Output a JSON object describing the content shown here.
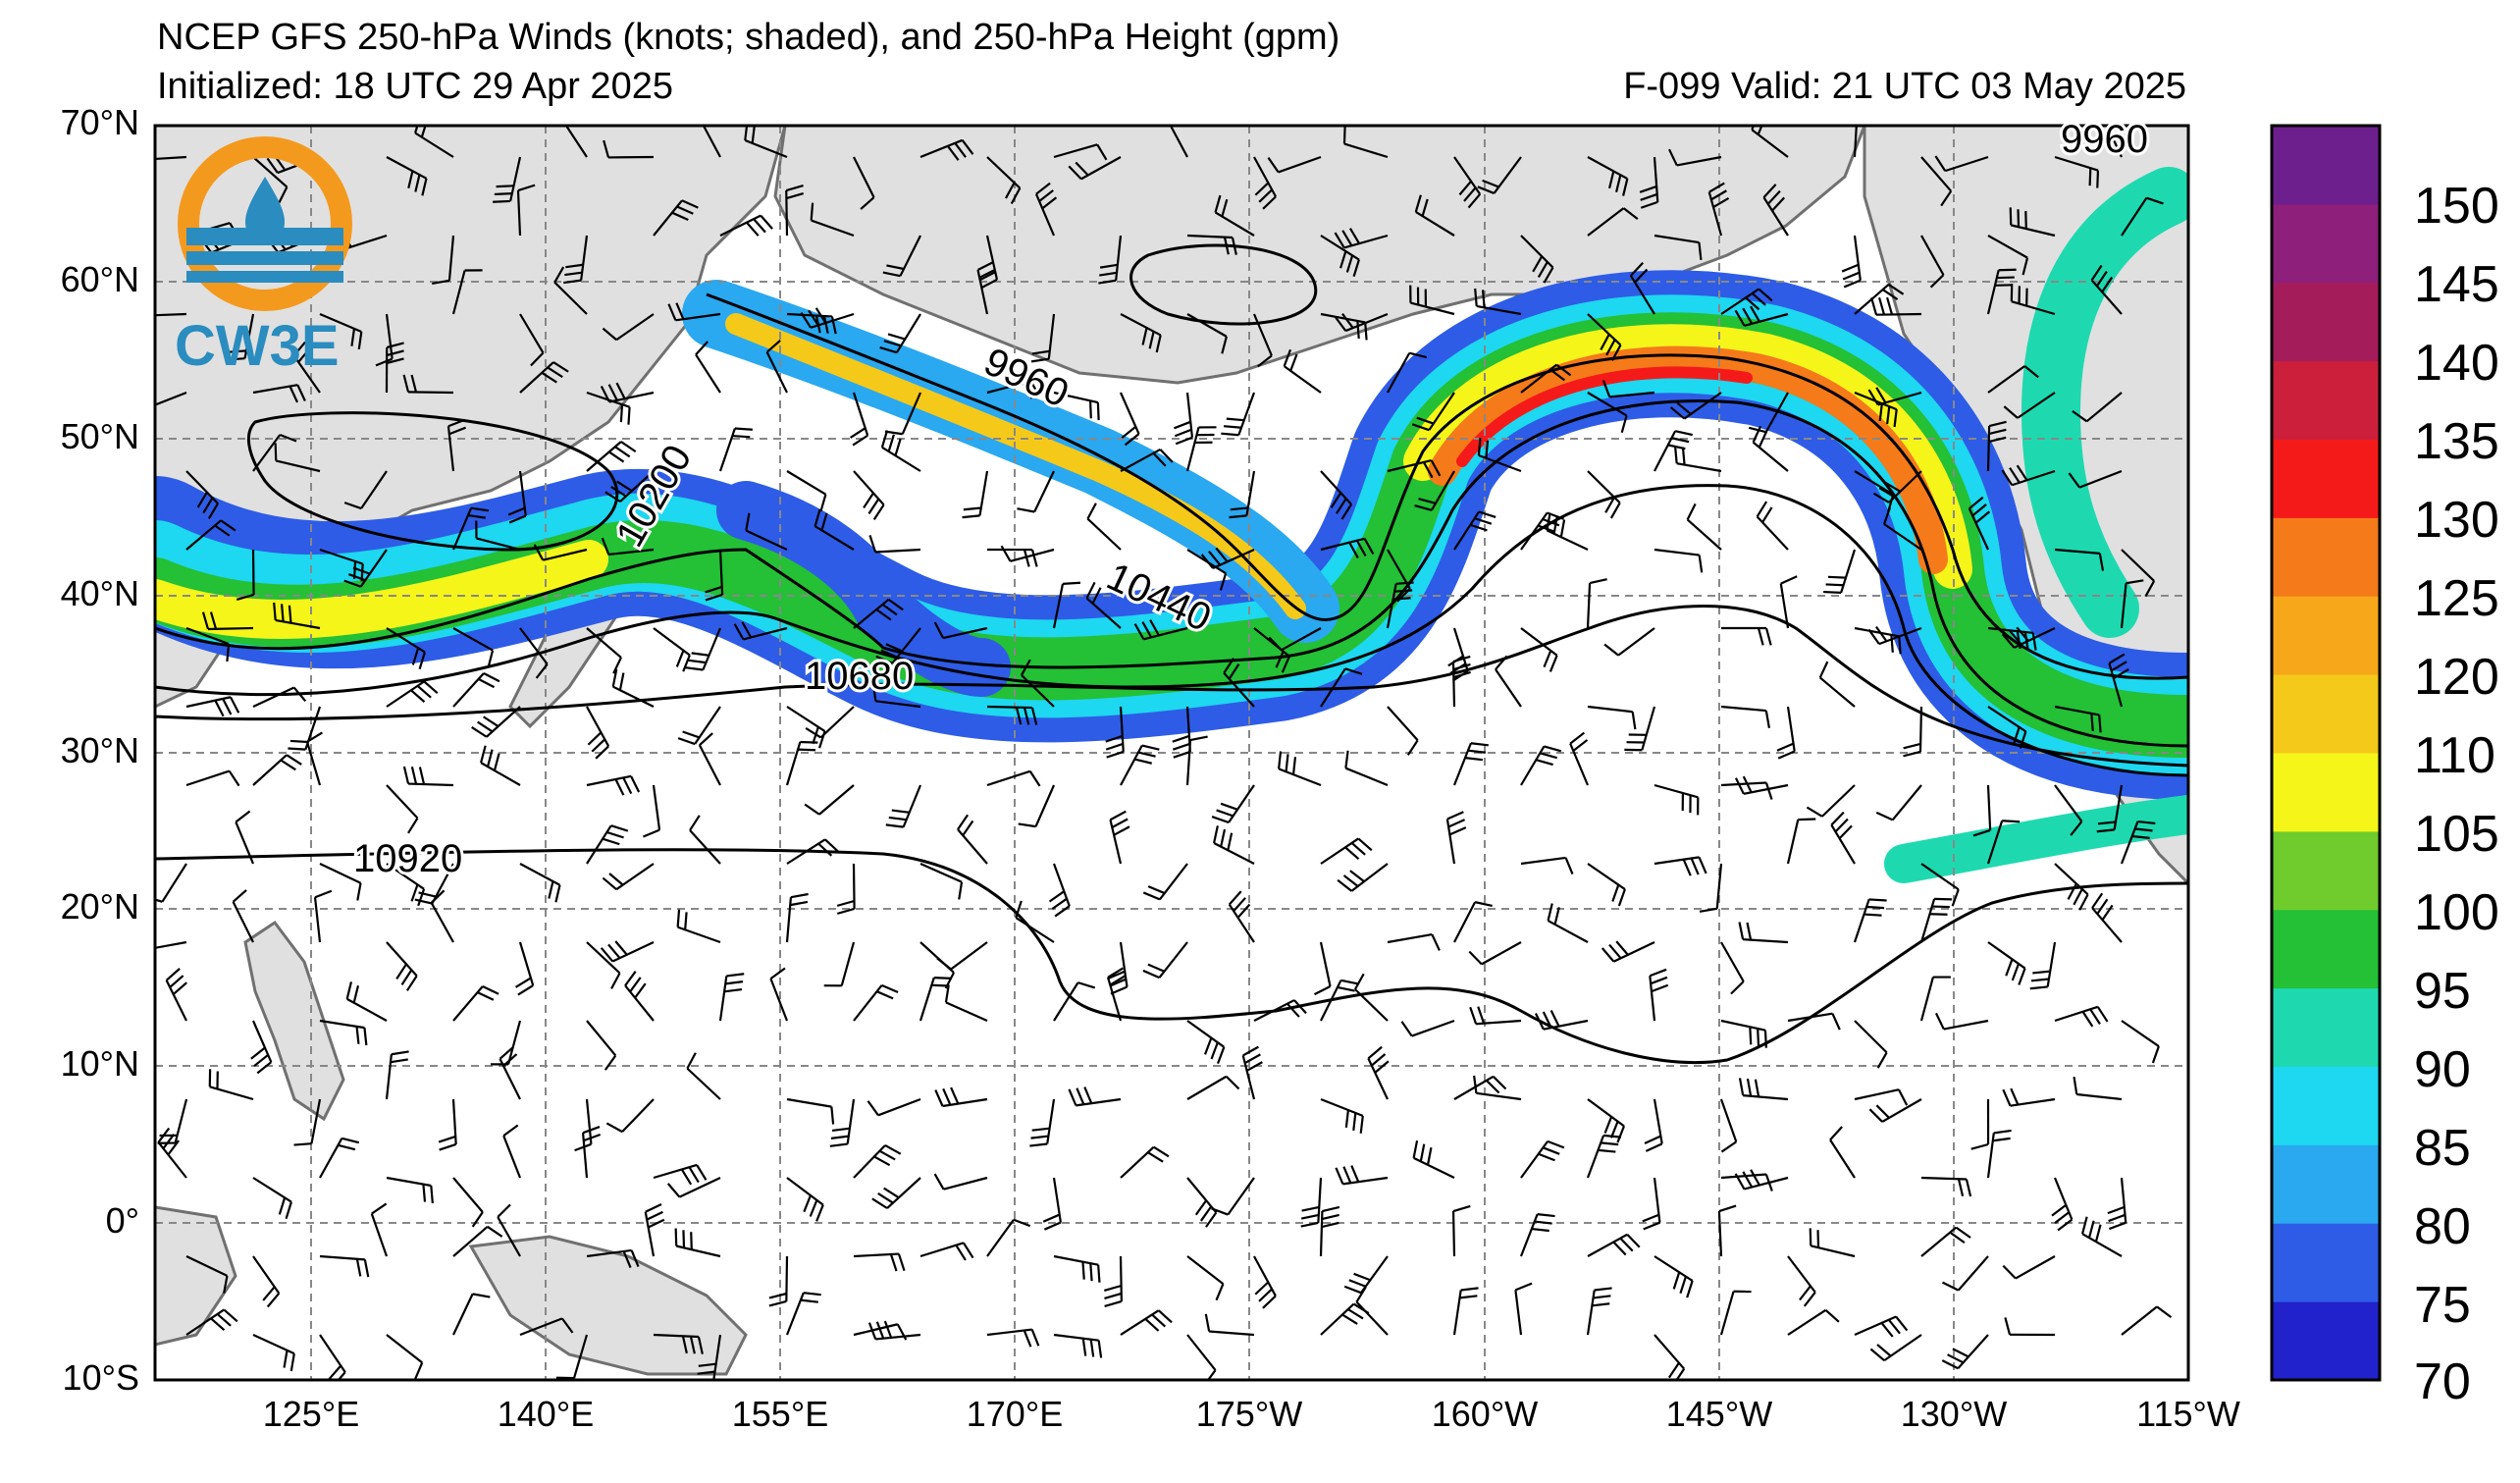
{
  "title": {
    "line1": "NCEP GFS 250-hPa Winds (knots; shaded), and 250-hPa Height (gpm)",
    "initialized": "Initialized: 18 UTC 29 Apr 2025",
    "valid": "F-099  Valid: 21 UTC 03 May 2025"
  },
  "logo": {
    "text": "CW3E",
    "colors": {
      "sun": "#f39a1e",
      "water": "#2a8cbf",
      "text": "#2a8cbf"
    }
  },
  "map": {
    "extent": {
      "lon_min": 110,
      "lon_max": 245,
      "lat_min": -10,
      "lat_max": 70
    },
    "lat_labels": [
      "70°N",
      "60°N",
      "50°N",
      "40°N",
      "30°N",
      "20°N",
      "10°N",
      "0°",
      "10°S"
    ],
    "lon_labels": [
      "125°E",
      "140°E",
      "155°E",
      "170°E",
      "175°W",
      "160°W",
      "145°W",
      "130°W",
      "115°W"
    ],
    "height_contour_labels": [
      "9960",
      "10200",
      "10440",
      "10680",
      "10920",
      "9960"
    ],
    "land_color": "#e0e0e0",
    "coast_color": "#707070"
  },
  "colorbar": {
    "ticks": [
      "150",
      "145",
      "140",
      "135",
      "130",
      "125",
      "120",
      "110",
      "105",
      "100",
      "95",
      "90",
      "85",
      "80",
      "75",
      "70"
    ],
    "colors_bottom_to_top": [
      "#2222cc",
      "#2e5ce6",
      "#2aa8f0",
      "#1ed7f0",
      "#1ed9b0",
      "#24c036",
      "#6fcc2c",
      "#f5f51a",
      "#f5c91a",
      "#f7a81a",
      "#f57a1a",
      "#f51a1a",
      "#cc1f3b",
      "#a51c5a",
      "#8e1f7a",
      "#6e1f8e"
    ]
  }
}
